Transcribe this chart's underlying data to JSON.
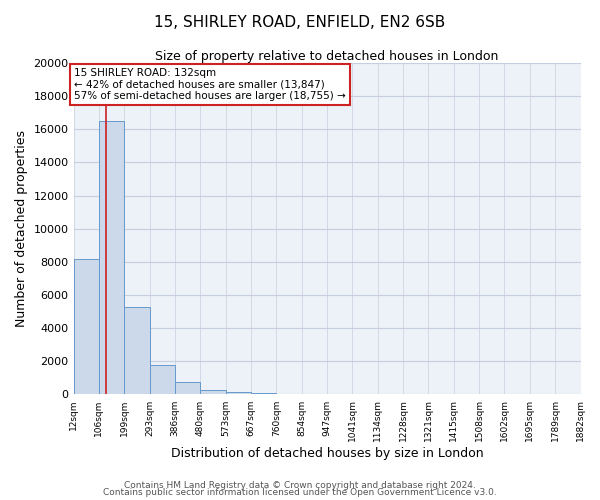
{
  "title": "15, SHIRLEY ROAD, ENFIELD, EN2 6SB",
  "subtitle": "Size of property relative to detached houses in London",
  "xlabel": "Distribution of detached houses by size in London",
  "ylabel": "Number of detached properties",
  "bar_color": "#ccd9ea",
  "bar_edge_color": "#6699cc",
  "grid_color": "#c5cfe0",
  "background_color": "#edf1f8",
  "annotation_box_color": "#ffffff",
  "annotation_box_edge": "#cc2222",
  "vline_color": "#cc2222",
  "property_label": "15 SHIRLEY ROAD: 132sqm",
  "smaller_pct": 42,
  "smaller_count": 13847,
  "larger_pct": 57,
  "larger_count": 18755,
  "bin_labels": [
    "12sqm",
    "106sqm",
    "199sqm",
    "293sqm",
    "386sqm",
    "480sqm",
    "573sqm",
    "667sqm",
    "760sqm",
    "854sqm",
    "947sqm",
    "1041sqm",
    "1134sqm",
    "1228sqm",
    "1321sqm",
    "1415sqm",
    "1508sqm",
    "1602sqm",
    "1695sqm",
    "1789sqm",
    "1882sqm"
  ],
  "bar_heights": [
    8200,
    16500,
    5300,
    1750,
    750,
    280,
    130,
    60,
    0,
    0,
    0,
    0,
    0,
    0,
    0,
    0,
    0,
    0,
    0,
    0
  ],
  "ylim": [
    0,
    20000
  ],
  "yticks": [
    0,
    2000,
    4000,
    6000,
    8000,
    10000,
    12000,
    14000,
    16000,
    18000,
    20000
  ],
  "vline_x": 1.27,
  "footer1": "Contains HM Land Registry data © Crown copyright and database right 2024.",
  "footer2": "Contains public sector information licensed under the Open Government Licence v3.0."
}
